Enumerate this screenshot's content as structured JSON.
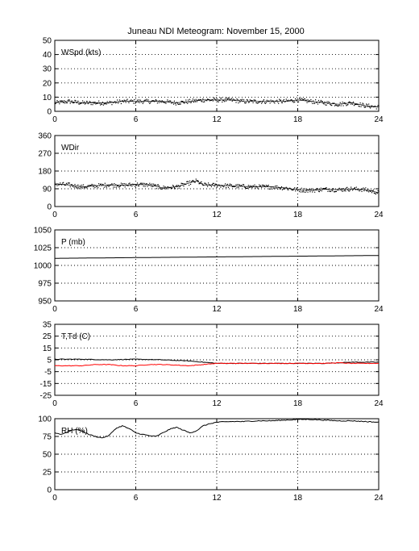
{
  "title": "Juneau NDI Meteogram:  November 15, 2000",
  "colors": {
    "line": "#000000",
    "dewpoint": "#ff0000",
    "background": "#ffffff"
  },
  "chart_data": [
    {
      "type": "scatter",
      "label": "WSpd (kts)",
      "xlim": [
        0,
        24
      ],
      "xticks": [
        0,
        6,
        12,
        18,
        24
      ],
      "ylim": [
        0,
        50
      ],
      "yticks": [
        0,
        10,
        20,
        30,
        40,
        50
      ],
      "grid": true,
      "series": [
        {
          "x": [
            0,
            1,
            2,
            3,
            4,
            5,
            6,
            7,
            8,
            9,
            10,
            11,
            12,
            13,
            14,
            15,
            16,
            17,
            18,
            19,
            20,
            21,
            22,
            23,
            24
          ],
          "y": [
            6,
            7,
            6,
            6,
            6,
            7,
            7,
            7,
            7,
            6,
            7,
            8,
            8,
            8,
            7,
            7,
            7,
            7,
            8,
            7,
            6,
            5,
            6,
            4,
            3
          ]
        }
      ]
    },
    {
      "type": "scatter",
      "label": "WDir",
      "xlim": [
        0,
        24
      ],
      "xticks": [
        0,
        6,
        12,
        18,
        24
      ],
      "ylim": [
        0,
        360
      ],
      "yticks": [
        0,
        90,
        180,
        270,
        360
      ],
      "grid": true,
      "series": [
        {
          "x": [
            0,
            1,
            2,
            3,
            4,
            5,
            6,
            7,
            8,
            9,
            10,
            10.5,
            11,
            12,
            13,
            14,
            15,
            16,
            17,
            18,
            19,
            20,
            21,
            22,
            23,
            24
          ],
          "y": [
            115,
            110,
            100,
            105,
            110,
            108,
            112,
            110,
            95,
            100,
            120,
            130,
            110,
            108,
            105,
            102,
            100,
            100,
            95,
            85,
            82,
            88,
            85,
            90,
            85,
            70
          ]
        }
      ]
    },
    {
      "type": "line",
      "label": "P (mb)",
      "xlim": [
        0,
        24
      ],
      "xticks": [
        0,
        6,
        12,
        18,
        24
      ],
      "ylim": [
        950,
        1050
      ],
      "yticks": [
        950,
        975,
        1000,
        1025,
        1050
      ],
      "grid": true,
      "series": [
        {
          "x": [
            0,
            3,
            6,
            9,
            12,
            15,
            18,
            21,
            24
          ],
          "y": [
            1010,
            1010.5,
            1011,
            1011.5,
            1012,
            1012.5,
            1013,
            1013.5,
            1014
          ]
        }
      ]
    },
    {
      "type": "line",
      "label": "T,Td (C)",
      "xlim": [
        0,
        24
      ],
      "xticks": [
        0,
        6,
        12,
        18,
        24
      ],
      "ylim": [
        -25,
        35
      ],
      "yticks": [
        -25,
        -15,
        -5,
        5,
        15,
        25,
        35
      ],
      "grid": true,
      "series": [
        {
          "color": "#000000",
          "x": [
            0,
            2,
            4,
            6,
            8,
            10,
            11,
            12,
            14,
            16,
            18,
            20,
            22,
            24
          ],
          "y": [
            5.5,
            5.5,
            5,
            5.5,
            5,
            4,
            3,
            2,
            2,
            2,
            2,
            2,
            3,
            3
          ]
        },
        {
          "color": "#ff0000",
          "x": [
            0,
            1,
            2,
            3,
            4,
            5,
            6,
            7,
            8,
            9,
            10,
            11,
            12,
            14,
            16,
            18,
            20,
            21,
            22,
            24
          ],
          "y": [
            0,
            0,
            0,
            1,
            1,
            0,
            0,
            1,
            1,
            0.5,
            0,
            1,
            2,
            2,
            2,
            2,
            2,
            2.5,
            2,
            2
          ]
        }
      ]
    },
    {
      "type": "line",
      "label": "RH (%)",
      "xlim": [
        0,
        24
      ],
      "xticks": [
        0,
        6,
        12,
        18,
        24
      ],
      "ylim": [
        0,
        100
      ],
      "yticks": [
        0,
        25,
        50,
        75,
        100
      ],
      "grid": true,
      "series": [
        {
          "x": [
            0,
            0.5,
            1,
            1.5,
            2,
            2.5,
            3,
            3.5,
            4,
            4.5,
            5,
            5.5,
            6,
            6.5,
            7,
            7.5,
            8,
            8.5,
            9,
            9.5,
            10,
            10.5,
            11,
            11.5,
            12,
            13,
            14,
            15,
            16,
            17,
            18,
            19,
            20,
            21,
            22,
            23,
            24
          ],
          "y": [
            80,
            78,
            82,
            85,
            83,
            78,
            75,
            73,
            76,
            86,
            90,
            86,
            80,
            78,
            76,
            75,
            80,
            85,
            88,
            84,
            80,
            83,
            90,
            93,
            95,
            96,
            96,
            97,
            97,
            98,
            99,
            99,
            98,
            97,
            97,
            96,
            95
          ]
        }
      ]
    }
  ]
}
